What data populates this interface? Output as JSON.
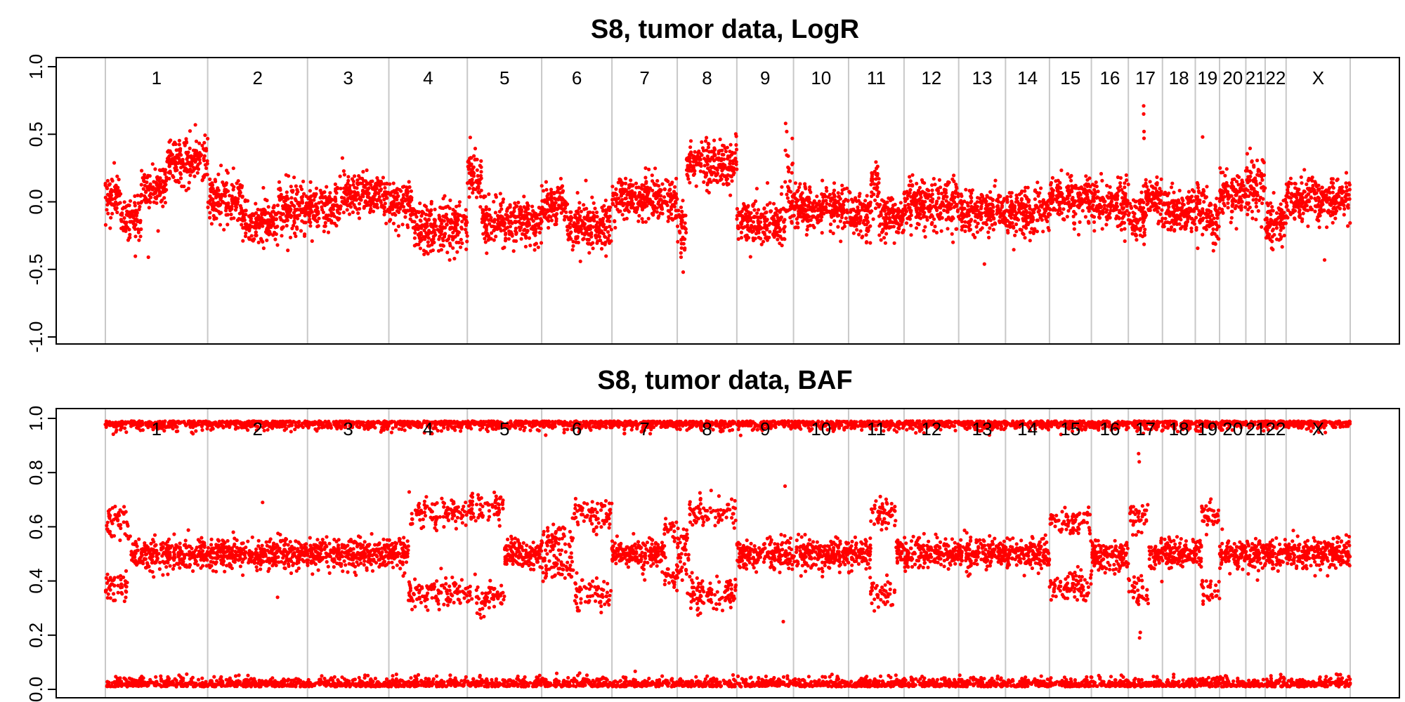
{
  "chart_data": [
    {
      "type": "scatter",
      "title": "S8, tumor data, LogR",
      "xlabel": "",
      "ylabel": "",
      "ylim": [
        -1.0,
        1.0
      ],
      "yticks": [
        -1.0,
        -0.5,
        0.0,
        0.5,
        1.0
      ],
      "ytick_labels": [
        "-1.0",
        "-0.5",
        "0.0",
        "0.5",
        "1.0"
      ],
      "grid": false,
      "point_color": "#ff0000",
      "separator_color": "#c8c8c8",
      "chromosomes": [
        "1",
        "2",
        "3",
        "4",
        "5",
        "6",
        "7",
        "8",
        "9",
        "10",
        "11",
        "12",
        "13",
        "14",
        "15",
        "16",
        "17",
        "18",
        "19",
        "20",
        "21",
        "22",
        "X"
      ],
      "chromosome_lengths_mb": [
        249,
        243,
        198,
        191,
        181,
        171,
        159,
        145,
        138,
        134,
        135,
        133,
        114,
        107,
        102,
        90,
        83,
        80,
        59,
        64,
        47,
        51,
        156
      ],
      "segments": [
        {
          "chrom": "1",
          "from": 0.0,
          "to": 0.15,
          "mean": 0.05,
          "sd": 0.08
        },
        {
          "chrom": "1",
          "from": 0.15,
          "to": 0.35,
          "mean": -0.12,
          "sd": 0.07
        },
        {
          "chrom": "1",
          "from": 0.35,
          "to": 0.6,
          "mean": 0.12,
          "sd": 0.08
        },
        {
          "chrom": "1",
          "from": 0.6,
          "to": 1.0,
          "mean": 0.3,
          "sd": 0.08
        },
        {
          "chrom": "2",
          "from": 0.0,
          "to": 0.35,
          "mean": 0.02,
          "sd": 0.09
        },
        {
          "chrom": "2",
          "from": 0.35,
          "to": 0.7,
          "mean": -0.15,
          "sd": 0.08
        },
        {
          "chrom": "2",
          "from": 0.7,
          "to": 1.0,
          "mean": -0.05,
          "sd": 0.08
        },
        {
          "chrom": "3",
          "from": 0.0,
          "to": 0.4,
          "mean": -0.05,
          "sd": 0.08
        },
        {
          "chrom": "3",
          "from": 0.4,
          "to": 1.0,
          "mean": 0.05,
          "sd": 0.08
        },
        {
          "chrom": "4",
          "from": 0.0,
          "to": 0.3,
          "mean": 0.0,
          "sd": 0.08
        },
        {
          "chrom": "4",
          "from": 0.3,
          "to": 1.0,
          "mean": -0.18,
          "sd": 0.09
        },
        {
          "chrom": "5",
          "from": 0.0,
          "to": 0.2,
          "mean": 0.22,
          "sd": 0.08
        },
        {
          "chrom": "5",
          "from": 0.2,
          "to": 1.0,
          "mean": -0.15,
          "sd": 0.08
        },
        {
          "chrom": "6",
          "from": 0.0,
          "to": 0.35,
          "mean": -0.02,
          "sd": 0.08
        },
        {
          "chrom": "6",
          "from": 0.35,
          "to": 1.0,
          "mean": -0.18,
          "sd": 0.09
        },
        {
          "chrom": "7",
          "from": 0.0,
          "to": 1.0,
          "mean": 0.02,
          "sd": 0.08
        },
        {
          "chrom": "8",
          "from": 0.0,
          "to": 0.15,
          "mean": -0.2,
          "sd": 0.09
        },
        {
          "chrom": "8",
          "from": 0.15,
          "to": 1.0,
          "mean": 0.28,
          "sd": 0.08
        },
        {
          "chrom": "9",
          "from": 0.0,
          "to": 0.85,
          "mean": -0.15,
          "sd": 0.08
        },
        {
          "chrom": "9",
          "from": 0.85,
          "to": 1.0,
          "mean": 0.05,
          "sd": 0.15
        },
        {
          "chrom": "10",
          "from": 0.0,
          "to": 1.0,
          "mean": -0.05,
          "sd": 0.08
        },
        {
          "chrom": "11",
          "from": 0.0,
          "to": 0.4,
          "mean": -0.1,
          "sd": 0.08
        },
        {
          "chrom": "11",
          "from": 0.4,
          "to": 0.55,
          "mean": 0.12,
          "sd": 0.09
        },
        {
          "chrom": "11",
          "from": 0.55,
          "to": 1.0,
          "mean": -0.12,
          "sd": 0.08
        },
        {
          "chrom": "12",
          "from": 0.0,
          "to": 1.0,
          "mean": -0.02,
          "sd": 0.09
        },
        {
          "chrom": "13",
          "from": 0.0,
          "to": 1.0,
          "mean": -0.08,
          "sd": 0.08
        },
        {
          "chrom": "14",
          "from": 0.0,
          "to": 1.0,
          "mean": -0.08,
          "sd": 0.08
        },
        {
          "chrom": "15",
          "from": 0.0,
          "to": 1.0,
          "mean": 0.02,
          "sd": 0.08
        },
        {
          "chrom": "16",
          "from": 0.0,
          "to": 1.0,
          "mean": 0.0,
          "sd": 0.09
        },
        {
          "chrom": "17",
          "from": 0.0,
          "to": 0.5,
          "mean": -0.12,
          "sd": 0.09
        },
        {
          "chrom": "17",
          "from": 0.5,
          "to": 1.0,
          "mean": 0.0,
          "sd": 0.08
        },
        {
          "chrom": "18",
          "from": 0.0,
          "to": 1.0,
          "mean": -0.08,
          "sd": 0.08
        },
        {
          "chrom": "19",
          "from": 0.0,
          "to": 0.5,
          "mean": -0.05,
          "sd": 0.1
        },
        {
          "chrom": "19",
          "from": 0.5,
          "to": 1.0,
          "mean": -0.15,
          "sd": 0.08
        },
        {
          "chrom": "20",
          "from": 0.0,
          "to": 1.0,
          "mean": 0.05,
          "sd": 0.08
        },
        {
          "chrom": "21",
          "from": 0.0,
          "to": 1.0,
          "mean": 0.1,
          "sd": 0.1
        },
        {
          "chrom": "22",
          "from": 0.0,
          "to": 1.0,
          "mean": -0.15,
          "sd": 0.08
        },
        {
          "chrom": "X",
          "from": 0.0,
          "to": 1.0,
          "mean": 0.02,
          "sd": 0.08
        }
      ],
      "outliers": [
        {
          "chrom": "1",
          "pos": 0.42,
          "y": -0.41
        },
        {
          "chrom": "1",
          "pos": 0.88,
          "y": 0.57
        },
        {
          "chrom": "8",
          "pos": 0.1,
          "y": -0.52
        },
        {
          "chrom": "9",
          "pos": 0.86,
          "y": 0.58
        },
        {
          "chrom": "9",
          "pos": 0.88,
          "y": 0.52
        },
        {
          "chrom": "13",
          "pos": 0.55,
          "y": -0.46
        },
        {
          "chrom": "17",
          "pos": 0.45,
          "y": 0.71
        },
        {
          "chrom": "17",
          "pos": 0.45,
          "y": 0.65
        },
        {
          "chrom": "17",
          "pos": 0.46,
          "y": 0.52
        },
        {
          "chrom": "17",
          "pos": 0.46,
          "y": 0.47
        },
        {
          "chrom": "19",
          "pos": 0.3,
          "y": 0.48
        },
        {
          "chrom": "X",
          "pos": 0.6,
          "y": -0.43
        }
      ]
    },
    {
      "type": "scatter",
      "title": "S8, tumor data, BAF",
      "xlabel": "",
      "ylabel": "",
      "ylim": [
        0.0,
        1.0
      ],
      "yticks": [
        0.0,
        0.2,
        0.4,
        0.6,
        0.8,
        1.0
      ],
      "ytick_labels": [
        "0.0",
        "0.2",
        "0.4",
        "0.6",
        "0.8",
        "1.0"
      ],
      "grid": false,
      "point_color": "#ff0000",
      "separator_color": "#c8c8c8",
      "chromosomes": [
        "1",
        "2",
        "3",
        "4",
        "5",
        "6",
        "7",
        "8",
        "9",
        "10",
        "11",
        "12",
        "13",
        "14",
        "15",
        "16",
        "17",
        "18",
        "19",
        "20",
        "21",
        "22",
        "X"
      ],
      "chromosome_lengths_mb": [
        249,
        243,
        198,
        191,
        181,
        171,
        159,
        145,
        138,
        134,
        135,
        133,
        114,
        107,
        102,
        90,
        83,
        80,
        59,
        64,
        47,
        51,
        156
      ],
      "homozygous_bands": [
        0.01,
        0.99
      ],
      "segments": [
        {
          "chrom": "1",
          "from": 0.0,
          "to": 0.25,
          "split": 0.12
        },
        {
          "chrom": "1",
          "from": 0.25,
          "to": 1.0,
          "split": 0.0
        },
        {
          "chrom": "2",
          "from": 0.0,
          "to": 1.0,
          "split": 0.0
        },
        {
          "chrom": "3",
          "from": 0.0,
          "to": 1.0,
          "split": 0.0
        },
        {
          "chrom": "4",
          "from": 0.0,
          "to": 0.25,
          "split": 0.0
        },
        {
          "chrom": "4",
          "from": 0.25,
          "to": 1.0,
          "split": 0.15
        },
        {
          "chrom": "5",
          "from": 0.0,
          "to": 0.5,
          "split": 0.17
        },
        {
          "chrom": "5",
          "from": 0.5,
          "to": 1.0,
          "split": 0.0
        },
        {
          "chrom": "6",
          "from": 0.0,
          "to": 0.45,
          "split": 0.05
        },
        {
          "chrom": "6",
          "from": 0.45,
          "to": 1.0,
          "split": 0.15
        },
        {
          "chrom": "7",
          "from": 0.0,
          "to": 0.8,
          "split": 0.0
        },
        {
          "chrom": "7",
          "from": 0.8,
          "to": 1.0,
          "split": 0.08
        },
        {
          "chrom": "8",
          "from": 0.0,
          "to": 0.2,
          "split": 0.05
        },
        {
          "chrom": "8",
          "from": 0.2,
          "to": 1.0,
          "split": 0.15
        },
        {
          "chrom": "9",
          "from": 0.0,
          "to": 1.0,
          "split": 0.0
        },
        {
          "chrom": "10",
          "from": 0.0,
          "to": 1.0,
          "split": 0.0
        },
        {
          "chrom": "11",
          "from": 0.0,
          "to": 0.4,
          "split": 0.0
        },
        {
          "chrom": "11",
          "from": 0.4,
          "to": 0.85,
          "split": 0.15
        },
        {
          "chrom": "11",
          "from": 0.85,
          "to": 1.0,
          "split": 0.0
        },
        {
          "chrom": "12",
          "from": 0.0,
          "to": 1.0,
          "split": 0.0
        },
        {
          "chrom": "13",
          "from": 0.0,
          "to": 1.0,
          "split": 0.0
        },
        {
          "chrom": "14",
          "from": 0.0,
          "to": 1.0,
          "split": 0.0
        },
        {
          "chrom": "15",
          "from": 0.0,
          "to": 1.0,
          "split": 0.12
        },
        {
          "chrom": "16",
          "from": 0.0,
          "to": 1.0,
          "split": 0.0
        },
        {
          "chrom": "17",
          "from": 0.0,
          "to": 0.6,
          "split": 0.14
        },
        {
          "chrom": "17",
          "from": 0.6,
          "to": 1.0,
          "split": 0.0
        },
        {
          "chrom": "18",
          "from": 0.0,
          "to": 1.0,
          "split": 0.0
        },
        {
          "chrom": "19",
          "from": 0.0,
          "to": 0.25,
          "split": 0.0
        },
        {
          "chrom": "19",
          "from": 0.25,
          "to": 1.0,
          "split": 0.14
        },
        {
          "chrom": "20",
          "from": 0.0,
          "to": 1.0,
          "split": 0.0
        },
        {
          "chrom": "21",
          "from": 0.0,
          "to": 1.0,
          "split": 0.0
        },
        {
          "chrom": "22",
          "from": 0.0,
          "to": 1.0,
          "split": 0.0
        },
        {
          "chrom": "X",
          "from": 0.0,
          "to": 1.0,
          "split": 0.0
        }
      ],
      "outliers": [
        {
          "chrom": "9",
          "pos": 0.85,
          "y": 0.75
        },
        {
          "chrom": "9",
          "pos": 0.82,
          "y": 0.25
        },
        {
          "chrom": "17",
          "pos": 0.3,
          "y": 0.87
        },
        {
          "chrom": "17",
          "pos": 0.32,
          "y": 0.84
        },
        {
          "chrom": "17",
          "pos": 0.33,
          "y": 0.19
        },
        {
          "chrom": "17",
          "pos": 0.35,
          "y": 0.21
        },
        {
          "chrom": "2",
          "pos": 0.55,
          "y": 0.69
        },
        {
          "chrom": "2",
          "pos": 0.7,
          "y": 0.34
        }
      ]
    }
  ]
}
